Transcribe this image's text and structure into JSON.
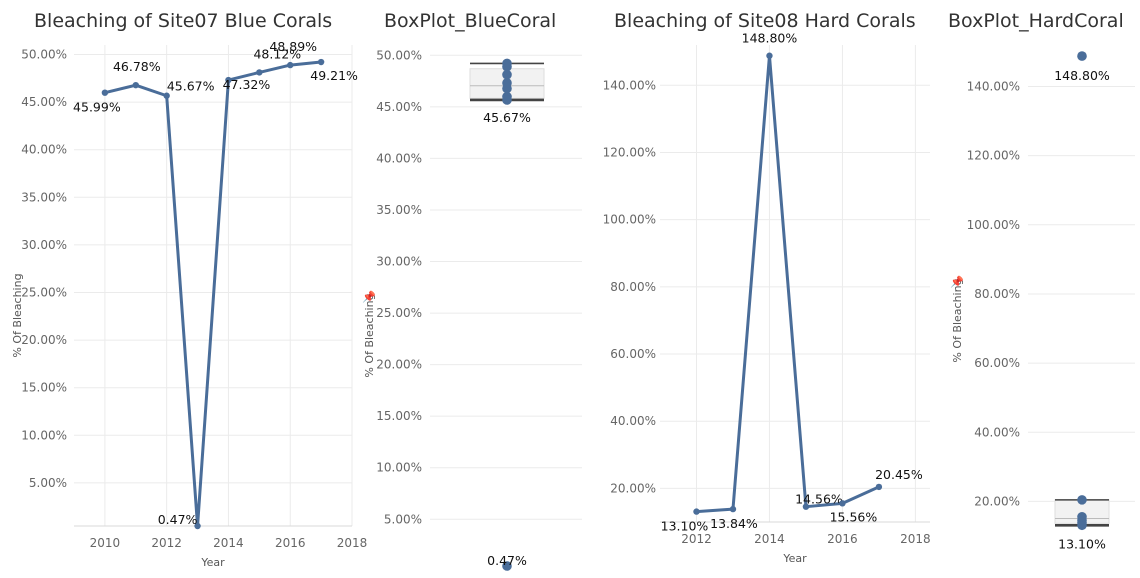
{
  "colors": {
    "series": "#4e79a7",
    "line": "#4a6d99",
    "grid": "#ebebeb",
    "box": "#f2f2f2",
    "whisker": "#444444"
  },
  "icons": {
    "pin": "pin-icon"
  },
  "chart_data": [
    {
      "type": "line",
      "title": "Bleaching of Site07 Blue Corals",
      "xlabel": "Year",
      "ylabel": "% Of Bleaching",
      "x_ticks": [
        "2010",
        "2012",
        "2014",
        "2016",
        "2018"
      ],
      "y_ticks": [
        "5.00%",
        "10.00%",
        "15.00%",
        "20.00%",
        "25.00%",
        "30.00%",
        "35.00%",
        "40.00%",
        "45.00%",
        "50.00%"
      ],
      "xlim": [
        2009,
        2018
      ],
      "ylim": [
        0.47,
        51.0
      ],
      "grid": true,
      "series": [
        {
          "x": [
            2010,
            2011,
            2012,
            2013,
            2014,
            2015,
            2016,
            2017
          ],
          "y": [
            45.99,
            46.78,
            45.67,
            0.47,
            47.32,
            48.12,
            48.89,
            49.21
          ],
          "labels": [
            "45.99%",
            "46.78%",
            "45.67%",
            "0.47%",
            "47.32%",
            "48.12%",
            "48.89%",
            "49.21%"
          ]
        }
      ]
    },
    {
      "type": "box",
      "title": "BoxPlot_BlueCoral",
      "ylabel": "% Of Bleaching",
      "y_ticks": [
        "5.00%",
        "10.00%",
        "15.00%",
        "20.00%",
        "25.00%",
        "30.00%",
        "35.00%",
        "40.00%",
        "45.00%",
        "50.00%"
      ],
      "ylim": [
        0.47,
        51.0
      ],
      "grid": true,
      "values": [
        45.99,
        46.78,
        45.67,
        0.47,
        47.32,
        48.12,
        48.89,
        49.21
      ],
      "box": {
        "whisker_low": 45.67,
        "q1": 45.83,
        "median": 47.05,
        "q3": 48.7,
        "whisker_high": 49.21
      },
      "labels": [
        {
          "value": 45.67,
          "text": "45.67%"
        },
        {
          "value": 0.47,
          "text": "0.47%"
        }
      ]
    },
    {
      "type": "line",
      "title": "Bleaching of Site08 Hard Corals",
      "xlabel": "Year",
      "ylabel": "",
      "x_ticks": [
        "2012",
        "2014",
        "2016",
        "2018"
      ],
      "y_ticks": [
        "20.00%",
        "40.00%",
        "60.00%",
        "80.00%",
        "100.00%",
        "120.00%",
        "140.00%"
      ],
      "xlim": [
        2011,
        2018.4
      ],
      "ylim": [
        10,
        152
      ],
      "grid": true,
      "series": [
        {
          "x": [
            2012,
            2013,
            2014,
            2015,
            2016,
            2017
          ],
          "y": [
            13.1,
            13.84,
            148.8,
            14.56,
            15.56,
            20.45
          ],
          "labels": [
            "13.10%",
            "13.84%",
            "148.80%",
            "14.56%",
            "15.56%",
            "20.45%"
          ]
        }
      ]
    },
    {
      "type": "box",
      "title": "BoxPlot_HardCoral",
      "ylabel": "% Of Bleaching",
      "y_ticks": [
        "20.00%",
        "40.00%",
        "60.00%",
        "80.00%",
        "100.00%",
        "120.00%",
        "140.00%"
      ],
      "ylim": [
        10,
        152
      ],
      "grid": true,
      "values": [
        13.1,
        13.84,
        148.8,
        14.56,
        15.56,
        20.45
      ],
      "box": {
        "whisker_low": 13.1,
        "q1": 13.66,
        "median": 15.06,
        "q3": 20.45,
        "whisker_high": 20.45
      },
      "labels": [
        {
          "value": 148.8,
          "text": "148.80%"
        },
        {
          "value": 13.1,
          "text": "13.10%"
        }
      ]
    }
  ]
}
